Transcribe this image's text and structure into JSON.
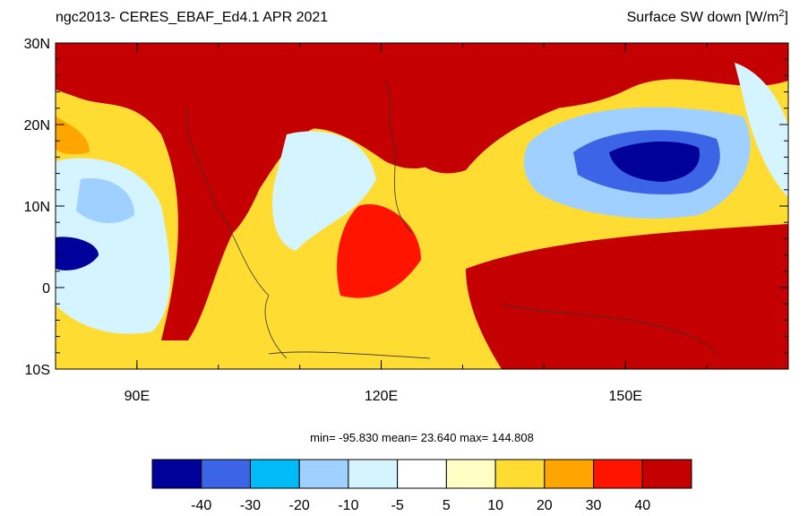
{
  "title_left": "ngc2013- CERES_EBAF_Ed4.1  APR 2021",
  "title_right": {
    "text": "Surface SW down [W/m",
    "sup": "2",
    "end": "]"
  },
  "map": {
    "lat_labels": [
      "30N",
      "20N",
      "10N",
      "0",
      "10S"
    ],
    "lon_labels": [
      "90E",
      "120E",
      "150E"
    ]
  },
  "stats": "min= -95.830  mean=  23.640  max= 144.808",
  "colorbar": {
    "colors": [
      "#00009a",
      "#3c64e6",
      "#00bbf5",
      "#a0d0ff",
      "#d4f4ff",
      "#ffffff",
      "#ffffc6",
      "#ffdc32",
      "#ffa500",
      "#ff1400",
      "#c40000"
    ],
    "labels": [
      "-40",
      "-30",
      "-20",
      "-10",
      "-5",
      "5",
      "10",
      "20",
      "30",
      "40"
    ]
  }
}
